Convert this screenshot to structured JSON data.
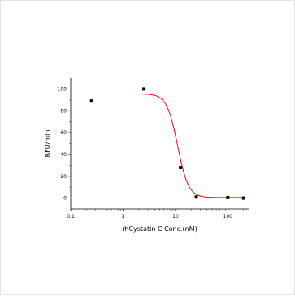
{
  "chart_data": {
    "type": "scatter",
    "xlabel": "rhCystatin C Conc.(nM)",
    "ylabel": "RFU/min",
    "x_scale": "log",
    "xlim": [
      0.1,
      250
    ],
    "ylim": [
      -10,
      110
    ],
    "x_ticks": [
      0.1,
      1,
      10,
      100
    ],
    "x_tick_labels": [
      "0.1",
      "1",
      "10",
      "100"
    ],
    "y_ticks": [
      0,
      20,
      40,
      60,
      80,
      100
    ],
    "y_tick_labels": [
      "0",
      "20",
      "40",
      "60",
      "80",
      "100"
    ],
    "grid": false,
    "series": [
      {
        "kind": "points",
        "marker": "square",
        "color": "#000000",
        "x": [
          0.25,
          2.5,
          12.5,
          25,
          100,
          200
        ],
        "y": [
          89,
          100,
          28,
          1,
          0.5,
          0
        ]
      },
      {
        "kind": "fit-curve",
        "color": "#ff0000",
        "top": 95.5,
        "bottom": 0.5,
        "ic50": 11,
        "hill": 4.2,
        "x_range": [
          0.25,
          200
        ]
      }
    ]
  }
}
